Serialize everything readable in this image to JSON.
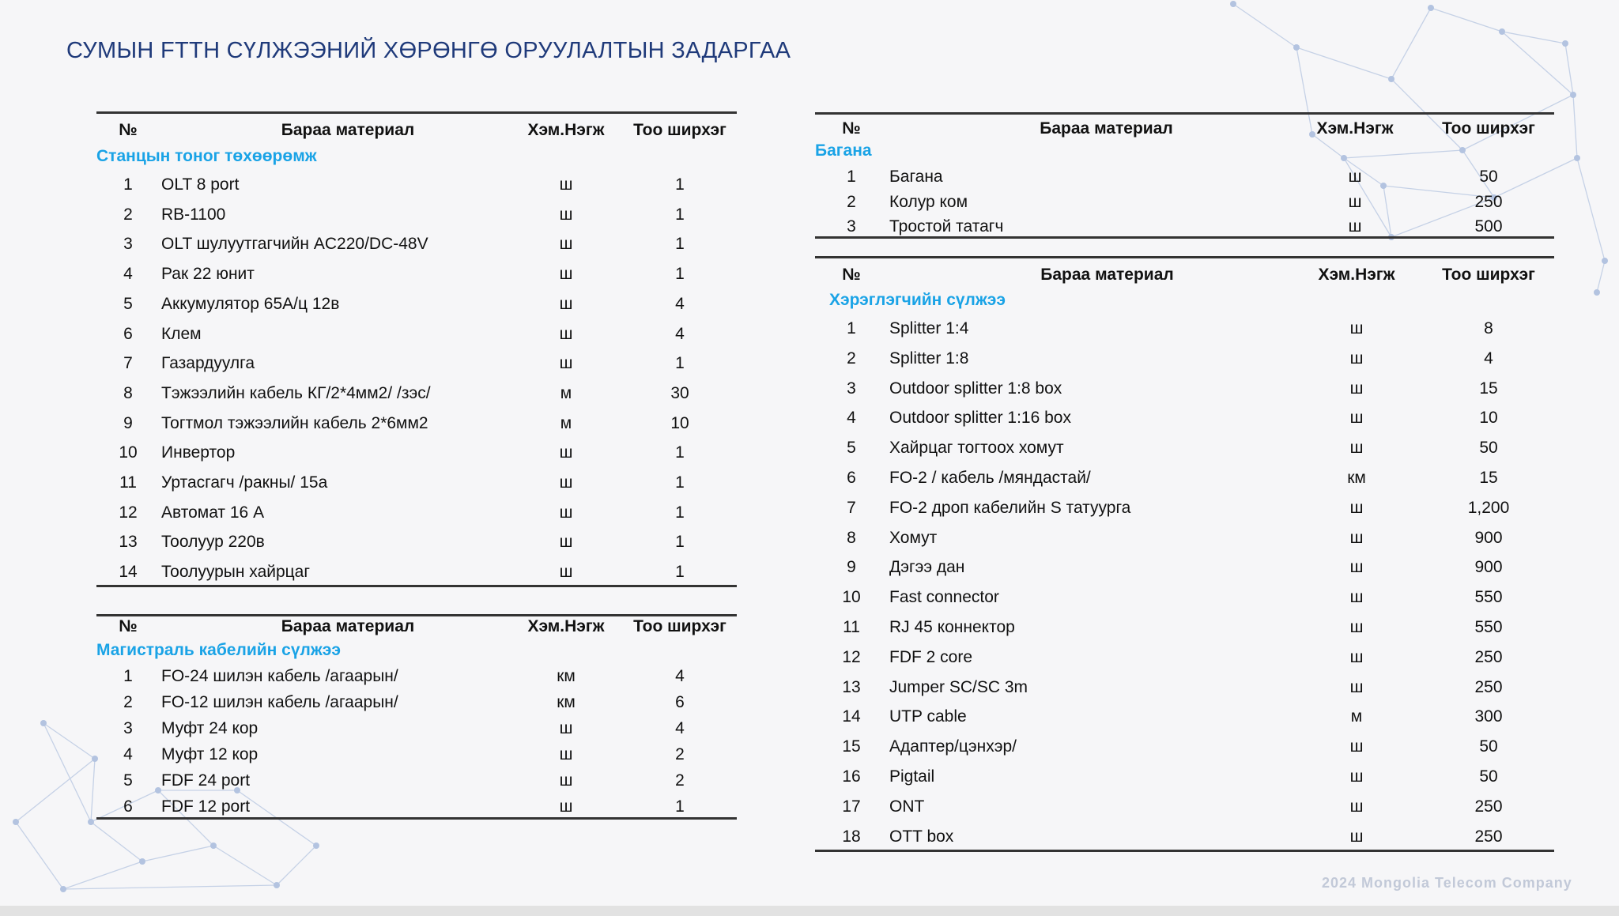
{
  "title": "СУМЫН FTTH СҮЛЖЭЭНИЙ ХӨРӨНГӨ ОРУУЛАЛТЫН ЗАДАРГАА",
  "footer": "2024 Mongolia Telecom Company",
  "colors": {
    "title": "#1f3a7a",
    "section": "#1aa3e6"
  },
  "headers": {
    "no": "№",
    "name": "Бараа материал",
    "unit": "Хэм.Нэгж",
    "qty": "Тоо ширхэг"
  },
  "tables": [
    {
      "section": "Станцын тоног төхөөрөмж",
      "rows": [
        [
          "1",
          "OLT 8 port",
          "ш",
          "1"
        ],
        [
          "2",
          "RB-1100",
          "ш",
          "1"
        ],
        [
          "3",
          "OLT шулуутгагчийн  AC220/DC-48V",
          "ш",
          "1"
        ],
        [
          "4",
          "Рак 22 юнит",
          "ш",
          "1"
        ],
        [
          "5",
          "Аккумулятор 65А/ц 12в",
          "ш",
          "4"
        ],
        [
          "6",
          "Клем",
          "ш",
          "4"
        ],
        [
          "7",
          "Газардуулга",
          "ш",
          "1"
        ],
        [
          "8",
          "Тэжээлийн кабель КГ/2*4мм2/ /зэс/",
          "м",
          "30"
        ],
        [
          "9",
          "Тогтмол тэжээлийн кабель 2*6мм2",
          "м",
          "10"
        ],
        [
          "10",
          "Инвертор",
          "ш",
          "1"
        ],
        [
          "11",
          "Уртасгагч /ракны/ 15а",
          "ш",
          "1"
        ],
        [
          "12",
          "Автомат 16 А",
          "ш",
          "1"
        ],
        [
          "13",
          "Тоолуур 220в",
          "ш",
          "1"
        ],
        [
          "14",
          "Тоолуурын хайрцаг",
          "ш",
          "1"
        ]
      ]
    },
    {
      "section": "Магистраль кабелийн сүлжээ",
      "rows": [
        [
          "1",
          "FO-24  шилэн кабель /агаарын/",
          "км",
          "4"
        ],
        [
          "2",
          "FO-12  шилэн кабель /агаарын/",
          "км",
          "6"
        ],
        [
          "3",
          "Муфт 24 кор",
          "ш",
          "4"
        ],
        [
          "4",
          "Муфт 12 кор",
          "ш",
          "2"
        ],
        [
          "5",
          "FDF 24 port",
          "ш",
          "2"
        ],
        [
          "6",
          "FDF 12 port",
          "ш",
          "1"
        ]
      ]
    },
    {
      "section": "Багана",
      "rows": [
        [
          "1",
          "Багана",
          "ш",
          "50"
        ],
        [
          "2",
          "Колур ком",
          "ш",
          "250"
        ],
        [
          "3",
          "Тростой татагч",
          "ш",
          "500"
        ]
      ]
    },
    {
      "section": "Хэрэглэгчийн сүлжээ",
      "rows": [
        [
          "1",
          "Splitter 1:4",
          "ш",
          "8"
        ],
        [
          "2",
          "Splitter 1:8",
          "ш",
          "4"
        ],
        [
          "3",
          "Outdoor splitter 1:8  box",
          "ш",
          "15"
        ],
        [
          "4",
          "Outdoor splitter 1:16  box",
          "ш",
          "10"
        ],
        [
          "5",
          "Хайрцаг тогтоох хомут",
          "ш",
          "50"
        ],
        [
          "6",
          "FO-2 /  кабель /мяндастай/",
          "км",
          "15"
        ],
        [
          "7",
          "FO-2 дроп кабелийн S татуурга",
          "ш",
          "1,200"
        ],
        [
          "8",
          "Хомут",
          "ш",
          "900"
        ],
        [
          "9",
          "Дэгээ дан",
          "ш",
          "900"
        ],
        [
          "10",
          "Fast connector",
          "ш",
          "550"
        ],
        [
          "11",
          "RJ 45 коннектор",
          "ш",
          "550"
        ],
        [
          "12",
          "FDF 2 core",
          "ш",
          "250"
        ],
        [
          "13",
          "Jumper SC/SC 3m",
          "ш",
          "250"
        ],
        [
          "14",
          "UTP cable",
          "м",
          "300"
        ],
        [
          "15",
          "Адаптер/цэнхэр/",
          "ш",
          "50"
        ],
        [
          "16",
          "Pigtail",
          "ш",
          "50"
        ],
        [
          "17",
          "ONT",
          "ш",
          "250"
        ],
        [
          "18",
          "OTT box",
          "ш",
          "250"
        ]
      ]
    }
  ]
}
